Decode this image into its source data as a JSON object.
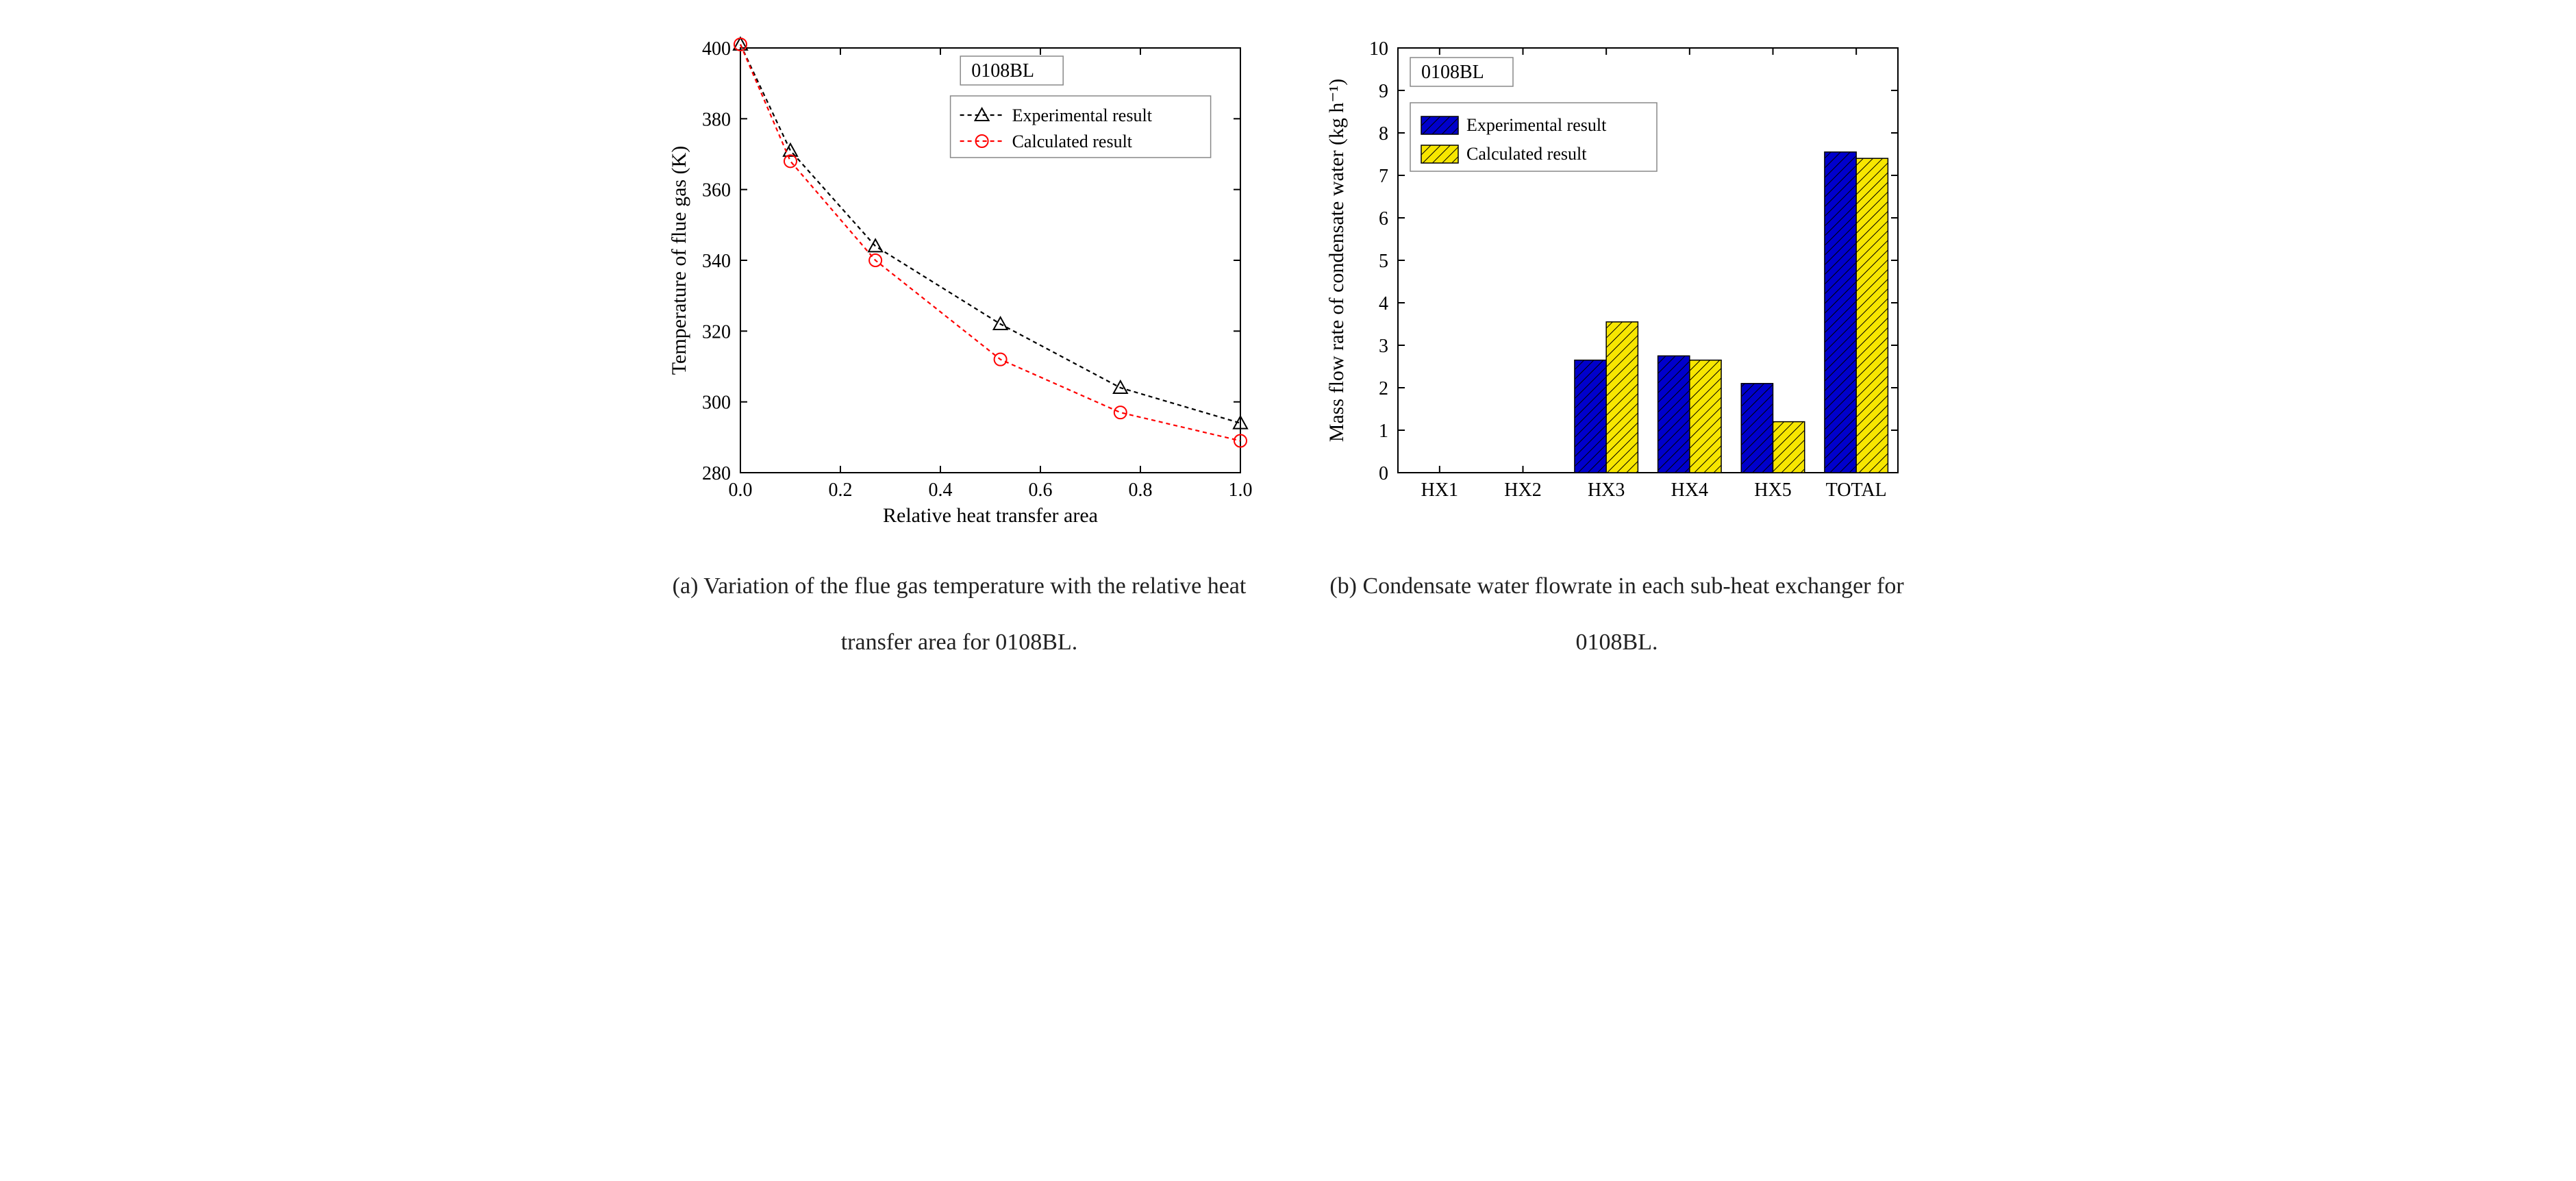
{
  "panel_a": {
    "type": "line",
    "sample_label": "0108BL",
    "xlabel": "Relative heat transfer area",
    "ylabel": "Temperature of flue gas (K)",
    "label_fontsize": 30,
    "tick_fontsize": 28,
    "xlim": [
      0.0,
      1.0
    ],
    "xtick_step": 0.2,
    "ylim": [
      280,
      400
    ],
    "ytick_step": 20,
    "legend": {
      "entries": [
        {
          "label": "Experimental result",
          "color": "#000000",
          "marker": "triangle"
        },
        {
          "label": "Calculated result",
          "color": "#ff0000",
          "marker": "circle"
        }
      ]
    },
    "series": [
      {
        "name": "Experimental result",
        "color": "#000000",
        "marker": "triangle",
        "dash": "6,5",
        "linewidth": 2.2,
        "x": [
          0.0,
          0.1,
          0.27,
          0.52,
          0.76,
          1.0
        ],
        "y": [
          401,
          371,
          344,
          322,
          304,
          294
        ]
      },
      {
        "name": "Calculated result",
        "color": "#ff0000",
        "marker": "circle",
        "dash": "6,5",
        "linewidth": 2.2,
        "x": [
          0.0,
          0.1,
          0.27,
          0.52,
          0.76,
          1.0
        ],
        "y": [
          401,
          368,
          340,
          312,
          297,
          289
        ]
      }
    ],
    "background_color": "#ffffff",
    "axis_color": "#000000",
    "caption": "(a) Variation of the flue gas temperature with the relative heat transfer area for 0108BL."
  },
  "panel_b": {
    "type": "bar",
    "sample_label": "0108BL",
    "ylabel": "Mass flow rate of condensate water (kg h⁻¹)",
    "label_fontsize": 30,
    "tick_fontsize": 28,
    "ylim": [
      0,
      10
    ],
    "ytick_step": 1,
    "categories": [
      "HX1",
      "HX2",
      "HX3",
      "HX4",
      "HX5",
      "TOTAL"
    ],
    "bar_width": 0.38,
    "series": [
      {
        "name": "Experimental result",
        "fill": "#0000cc",
        "hatch_color": "#000000",
        "hatch": "diag",
        "values": [
          0,
          0,
          2.65,
          2.75,
          2.1,
          7.55
        ]
      },
      {
        "name": "Calculated result",
        "fill": "#f7e600",
        "hatch_color": "#000000",
        "hatch": "diag",
        "values": [
          0,
          0,
          3.55,
          2.65,
          1.2,
          7.4
        ]
      }
    ],
    "background_color": "#ffffff",
    "axis_color": "#000000",
    "legend": {
      "entries": [
        {
          "label": "Experimental result",
          "fill": "#0000cc"
        },
        {
          "label": "Calculated result",
          "fill": "#f7e600"
        }
      ]
    },
    "caption": "(b) Condensate water flowrate in each sub-heat exchanger for 0108BL."
  }
}
